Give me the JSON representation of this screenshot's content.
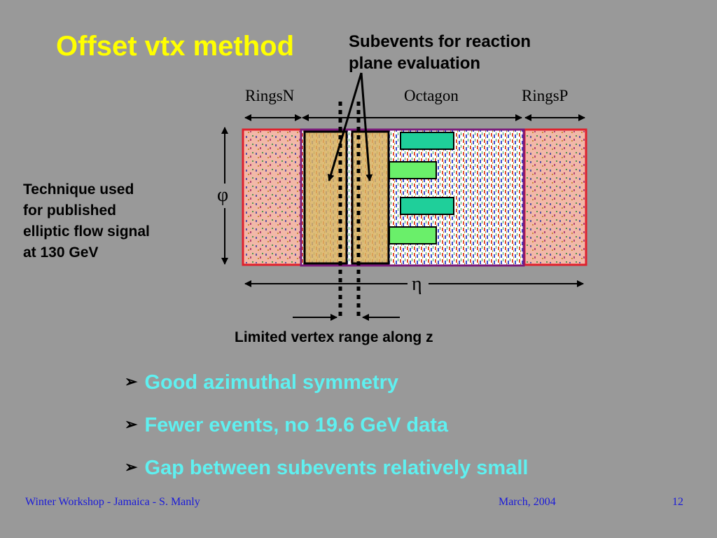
{
  "slide": {
    "title": "Offset vtx method",
    "subevents_label_line1": "Subevents for reaction",
    "subevents_label_line2": "plane evaluation",
    "detector_labels": {
      "left": "RingsN",
      "center": "Octagon",
      "right": "RingsP"
    },
    "axis_symbols": {
      "phi": "φ",
      "eta": "η"
    },
    "technique_lines": [
      "Technique used",
      "for published",
      "elliptic flow signal",
      "at 130 GeV"
    ],
    "vertex_label": "Limited vertex range along z",
    "bullets": [
      "Good azimuthal symmetry",
      "Fewer events, no 19.6 GeV data",
      "Gap between subevents relatively small"
    ],
    "bullet_marker": "➢"
  },
  "footer": {
    "left": "Winter Workshop - Jamaica - S. Manly",
    "date": "March, 2004",
    "page": "12"
  },
  "colors": {
    "background": "#999999",
    "title": "#ffff00",
    "bullets": "#5ff0f0",
    "footer": "#1a1ad9",
    "rings_fill": "#f2b8a8",
    "rings_border": "#e0202c",
    "octagon_border": "#7a1a7a",
    "subevent_fill": "#d8b060",
    "pad_dark_green": "#1fcf9a",
    "pad_light_green": "#6aef6a"
  }
}
